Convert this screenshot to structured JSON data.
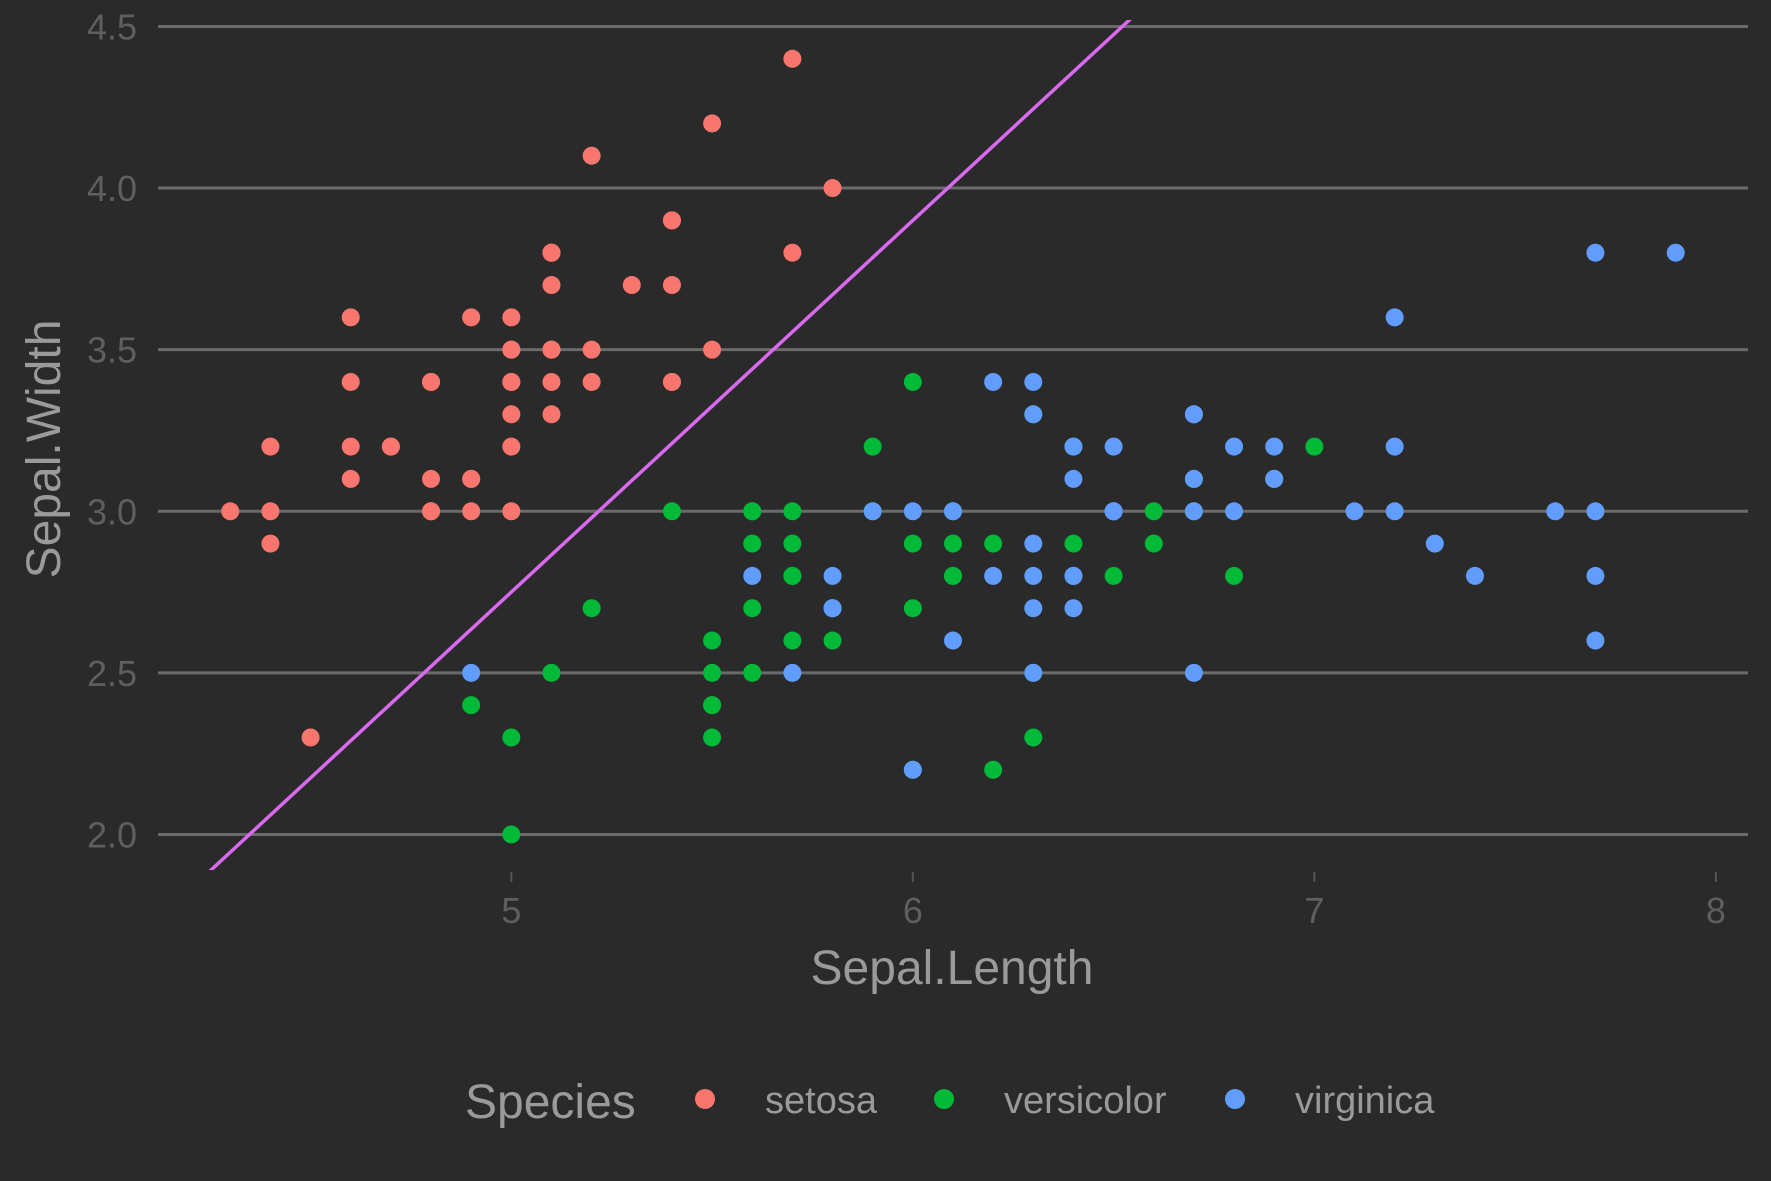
{
  "chart_data": {
    "type": "scatter",
    "xlabel": "Sepal.Length",
    "ylabel": "Sepal.Width",
    "xlim": [
      4.12,
      8.08
    ],
    "ylim": [
      1.89,
      4.52
    ],
    "x_ticks": [
      5,
      6,
      7,
      8
    ],
    "x_tick_labels": [
      "5",
      "6",
      "7",
      "8"
    ],
    "y_ticks": [
      2.0,
      2.5,
      3.0,
      3.5,
      4.0,
      4.5
    ],
    "y_tick_labels": [
      "2.0",
      "2.5",
      "3.0",
      "3.5",
      "4.0",
      "4.5"
    ],
    "grid": "horizontal",
    "legend": {
      "title": "Species",
      "position": "bottom"
    },
    "series": [
      {
        "name": "setosa",
        "color": "#F8766D",
        "points": [
          [
            5.1,
            3.5
          ],
          [
            4.9,
            3.0
          ],
          [
            4.7,
            3.2
          ],
          [
            4.6,
            3.1
          ],
          [
            5.0,
            3.6
          ],
          [
            5.4,
            3.9
          ],
          [
            4.6,
            3.4
          ],
          [
            5.0,
            3.4
          ],
          [
            4.4,
            2.9
          ],
          [
            4.9,
            3.1
          ],
          [
            5.4,
            3.7
          ],
          [
            4.8,
            3.4
          ],
          [
            4.8,
            3.0
          ],
          [
            4.3,
            3.0
          ],
          [
            5.8,
            4.0
          ],
          [
            5.7,
            4.4
          ],
          [
            5.4,
            3.9
          ],
          [
            5.1,
            3.5
          ],
          [
            5.7,
            3.8
          ],
          [
            5.1,
            3.8
          ],
          [
            5.4,
            3.4
          ],
          [
            5.1,
            3.7
          ],
          [
            4.6,
            3.6
          ],
          [
            5.1,
            3.3
          ],
          [
            4.8,
            3.4
          ],
          [
            5.0,
            3.0
          ],
          [
            5.0,
            3.4
          ],
          [
            5.2,
            3.5
          ],
          [
            5.2,
            3.4
          ],
          [
            4.7,
            3.2
          ],
          [
            4.8,
            3.1
          ],
          [
            5.4,
            3.4
          ],
          [
            5.2,
            4.1
          ],
          [
            5.5,
            4.2
          ],
          [
            4.9,
            3.1
          ],
          [
            5.0,
            3.2
          ],
          [
            5.5,
            3.5
          ],
          [
            4.9,
            3.6
          ],
          [
            4.4,
            3.0
          ],
          [
            5.1,
            3.4
          ],
          [
            5.0,
            3.5
          ],
          [
            4.5,
            2.3
          ],
          [
            4.4,
            3.2
          ],
          [
            5.0,
            3.5
          ],
          [
            5.1,
            3.8
          ],
          [
            4.8,
            3.0
          ],
          [
            5.1,
            3.8
          ],
          [
            4.6,
            3.2
          ],
          [
            5.3,
            3.7
          ],
          [
            5.0,
            3.3
          ]
        ]
      },
      {
        "name": "versicolor",
        "color": "#00BA38",
        "points": [
          [
            7.0,
            3.2
          ],
          [
            6.4,
            3.2
          ],
          [
            6.9,
            3.1
          ],
          [
            5.5,
            2.3
          ],
          [
            6.5,
            2.8
          ],
          [
            5.7,
            2.8
          ],
          [
            6.3,
            3.3
          ],
          [
            4.9,
            2.4
          ],
          [
            6.6,
            2.9
          ],
          [
            5.2,
            2.7
          ],
          [
            5.0,
            2.0
          ],
          [
            5.9,
            3.0
          ],
          [
            6.0,
            2.2
          ],
          [
            6.1,
            2.9
          ],
          [
            5.6,
            2.9
          ],
          [
            6.7,
            3.1
          ],
          [
            5.6,
            3.0
          ],
          [
            5.8,
            2.7
          ],
          [
            6.2,
            2.2
          ],
          [
            5.6,
            2.5
          ],
          [
            5.9,
            3.2
          ],
          [
            6.1,
            2.8
          ],
          [
            6.3,
            2.5
          ],
          [
            6.1,
            2.8
          ],
          [
            6.4,
            2.9
          ],
          [
            6.6,
            3.0
          ],
          [
            6.8,
            2.8
          ],
          [
            6.7,
            3.0
          ],
          [
            6.0,
            2.9
          ],
          [
            5.7,
            2.6
          ],
          [
            5.5,
            2.4
          ],
          [
            5.5,
            2.4
          ],
          [
            5.8,
            2.7
          ],
          [
            6.0,
            2.7
          ],
          [
            5.4,
            3.0
          ],
          [
            6.0,
            3.4
          ],
          [
            6.7,
            3.1
          ],
          [
            6.3,
            2.3
          ],
          [
            5.6,
            3.0
          ],
          [
            5.5,
            2.5
          ],
          [
            5.5,
            2.6
          ],
          [
            6.1,
            3.0
          ],
          [
            5.8,
            2.6
          ],
          [
            5.0,
            2.3
          ],
          [
            5.6,
            2.7
          ],
          [
            5.7,
            3.0
          ],
          [
            5.7,
            2.9
          ],
          [
            6.2,
            2.9
          ],
          [
            5.1,
            2.5
          ],
          [
            5.7,
            2.8
          ]
        ]
      },
      {
        "name": "virginica",
        "color": "#619CFF",
        "points": [
          [
            6.3,
            3.3
          ],
          [
            5.8,
            2.7
          ],
          [
            7.1,
            3.0
          ],
          [
            6.3,
            2.9
          ],
          [
            6.5,
            3.0
          ],
          [
            7.6,
            3.0
          ],
          [
            4.9,
            2.5
          ],
          [
            7.3,
            2.9
          ],
          [
            6.7,
            2.5
          ],
          [
            7.2,
            3.6
          ],
          [
            6.5,
            3.2
          ],
          [
            6.4,
            2.7
          ],
          [
            6.8,
            3.0
          ],
          [
            5.7,
            2.5
          ],
          [
            5.8,
            2.8
          ],
          [
            6.4,
            3.2
          ],
          [
            6.5,
            3.0
          ],
          [
            7.7,
            3.8
          ],
          [
            7.7,
            2.6
          ],
          [
            6.0,
            2.2
          ],
          [
            6.9,
            3.2
          ],
          [
            5.6,
            2.8
          ],
          [
            7.7,
            2.8
          ],
          [
            6.3,
            2.7
          ],
          [
            6.7,
            3.3
          ],
          [
            7.2,
            3.2
          ],
          [
            6.2,
            2.8
          ],
          [
            6.1,
            3.0
          ],
          [
            6.4,
            2.8
          ],
          [
            7.2,
            3.0
          ],
          [
            7.4,
            2.8
          ],
          [
            7.9,
            3.8
          ],
          [
            6.4,
            2.8
          ],
          [
            6.3,
            2.8
          ],
          [
            6.1,
            2.6
          ],
          [
            7.7,
            3.0
          ],
          [
            6.3,
            3.4
          ],
          [
            6.4,
            3.1
          ],
          [
            6.0,
            3.0
          ],
          [
            6.9,
            3.1
          ],
          [
            6.7,
            3.1
          ],
          [
            6.9,
            3.1
          ],
          [
            5.8,
            2.7
          ],
          [
            6.8,
            3.2
          ],
          [
            6.7,
            3.3
          ],
          [
            6.7,
            3.0
          ],
          [
            6.3,
            2.5
          ],
          [
            6.5,
            3.0
          ],
          [
            6.2,
            3.4
          ],
          [
            5.9,
            3.0
          ]
        ]
      }
    ],
    "annotations": [
      {
        "type": "abline",
        "color": "#D96AF0",
        "intercept": -3.0,
        "slope": 1.15
      }
    ]
  }
}
